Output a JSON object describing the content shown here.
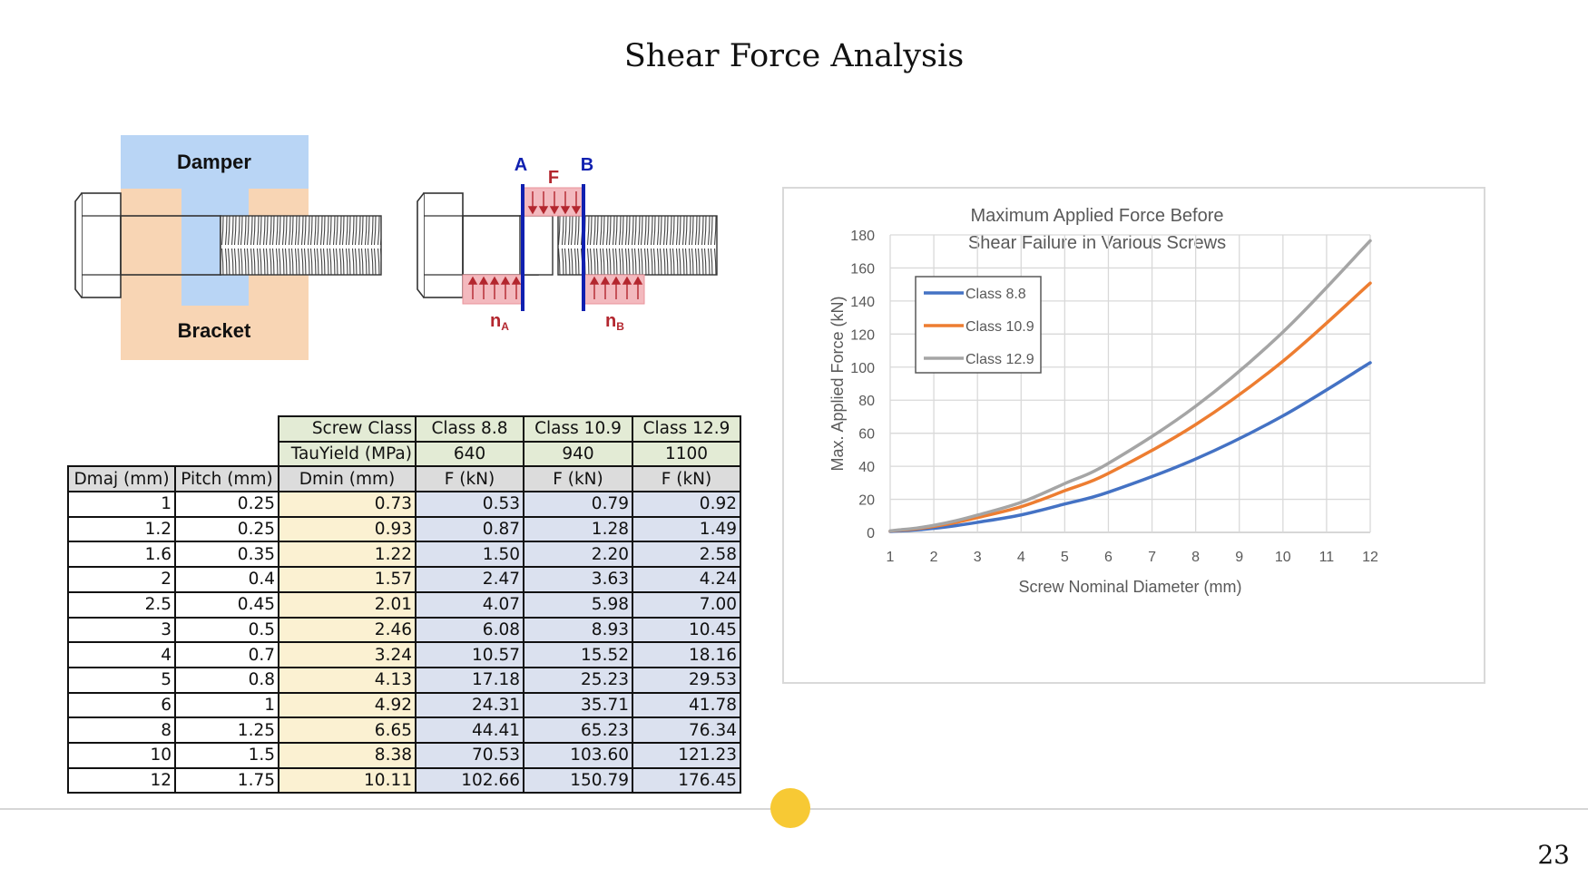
{
  "slide": {
    "title": "Shear Force Analysis",
    "page_number": "23"
  },
  "diagram": {
    "damper_label": "Damper",
    "bracket_label": "Bracket",
    "plane_a_label": "A",
    "plane_b_label": "B",
    "force_label": "F",
    "na_main": "n",
    "na_sub": "A",
    "nb_main": "n",
    "nb_sub": "B",
    "colors": {
      "damper": "#b9d5f5",
      "bracket": "#f8d5b4",
      "plane": "#1020b0",
      "force": "#b3262e",
      "force_fill": "#f3b9be"
    }
  },
  "table": {
    "screw_class_label": "Screw Class",
    "tau_label": "TauYield (MPa)",
    "classes": [
      "Class 8.8",
      "Class 10.9",
      "Class 12.9"
    ],
    "tau_values": [
      "640",
      "940",
      "1100"
    ],
    "column_headers": [
      "Dmaj (mm)",
      "Pitch (mm)",
      "Dmin (mm)",
      "F (kN)",
      "F (kN)",
      "F (kN)"
    ],
    "rows": [
      [
        "1",
        "0.25",
        "0.73",
        "0.53",
        "0.79",
        "0.92"
      ],
      [
        "1.2",
        "0.25",
        "0.93",
        "0.87",
        "1.28",
        "1.49"
      ],
      [
        "1.6",
        "0.35",
        "1.22",
        "1.50",
        "2.20",
        "2.58"
      ],
      [
        "2",
        "0.4",
        "1.57",
        "2.47",
        "3.63",
        "4.24"
      ],
      [
        "2.5",
        "0.45",
        "2.01",
        "4.07",
        "5.98",
        "7.00"
      ],
      [
        "3",
        "0.5",
        "2.46",
        "6.08",
        "8.93",
        "10.45"
      ],
      [
        "4",
        "0.7",
        "3.24",
        "10.57",
        "15.52",
        "18.16"
      ],
      [
        "5",
        "0.8",
        "4.13",
        "17.18",
        "25.23",
        "29.53"
      ],
      [
        "6",
        "1",
        "4.92",
        "24.31",
        "35.71",
        "41.78"
      ],
      [
        "8",
        "1.25",
        "6.65",
        "44.41",
        "65.23",
        "76.34"
      ],
      [
        "10",
        "1.5",
        "8.38",
        "70.53",
        "103.60",
        "121.23"
      ],
      [
        "12",
        "1.75",
        "10.11",
        "102.66",
        "150.79",
        "176.45"
      ]
    ]
  },
  "chart_data": {
    "type": "line",
    "title_lines": [
      "Maximum Applied Force Before",
      "Shear Failure in Various Screws"
    ],
    "xlabel": "Screw Nominal Diameter (mm)",
    "ylabel": "Max. Applied Force (kN)",
    "xlim": [
      1,
      12
    ],
    "ylim": [
      0,
      180
    ],
    "xticks": [
      1,
      2,
      3,
      4,
      5,
      6,
      7,
      8,
      9,
      10,
      11,
      12
    ],
    "yticks": [
      0,
      20,
      40,
      60,
      80,
      100,
      120,
      140,
      160,
      180
    ],
    "grid": true,
    "legend_position": "top-left",
    "x": [
      1,
      1.2,
      1.6,
      2,
      2.5,
      3,
      4,
      5,
      6,
      8,
      10,
      12
    ],
    "series": [
      {
        "name": "Class 8.8",
        "color": "#4472c4",
        "values": [
          0.53,
          0.87,
          1.5,
          2.47,
          4.07,
          6.08,
          10.57,
          17.18,
          24.31,
          44.41,
          70.53,
          102.66
        ]
      },
      {
        "name": "Class 10.9",
        "color": "#ed7d31",
        "values": [
          0.79,
          1.28,
          2.2,
          3.63,
          5.98,
          8.93,
          15.52,
          25.23,
          35.71,
          65.23,
          103.6,
          150.79
        ]
      },
      {
        "name": "Class 12.9",
        "color": "#a5a5a5",
        "values": [
          0.92,
          1.49,
          2.58,
          4.24,
          7.0,
          10.45,
          18.16,
          29.53,
          41.78,
          76.34,
          121.23,
          176.45
        ]
      }
    ]
  }
}
